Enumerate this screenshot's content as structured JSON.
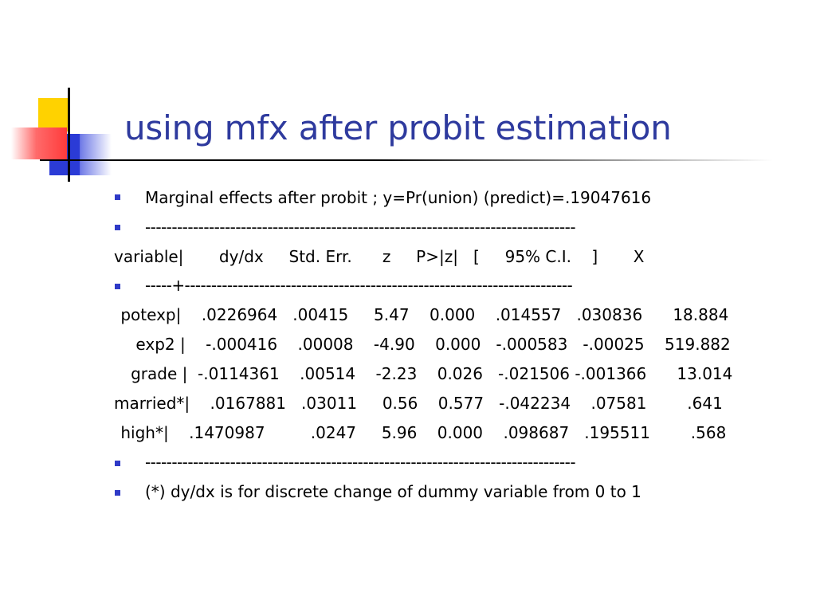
{
  "title": "using mfx after probit estimation",
  "lines": {
    "intro": "Marginal effects after probit ; y=Pr(union) (predict)=.19047616",
    "sep1": "---------------------------------------------------------------------------------",
    "header": "variable|       dy/dx     Std. Err.      z     P>|z|   [     95% C.I.    ]       X",
    "sep2": "-----+-------------------------------------------------------------------------",
    "row_potexp": " potexp|    .0226964   .00415     5.47    0.000    .014557   .030836      18.884",
    "row_exp2": "    exp2 |    -.000416    .00008    -4.90    0.000   -.000583   -.00025    519.882",
    "row_grade": "   grade |  -.0114361    .00514    -2.23    0.026   -.021506 -.001366      13.014",
    "row_married": "married*|    .0167881   .03011     0.56    0.577   -.042234    .07581        .641",
    "row_high": " high*|    .1470987         .0247     5.96    0.000    .098687   .195511        .568",
    "sep3": "---------------------------------------------------------------------------------",
    "note": "(*) dy/dx is for discrete change of dummy variable from 0 to 1"
  },
  "colors": {
    "title": "#2e3a9e",
    "bullet": "#2f3ac7",
    "accent_yellow": "#ffd200",
    "accent_red": "#ff3b3b",
    "accent_blue": "#2b3bd6"
  }
}
